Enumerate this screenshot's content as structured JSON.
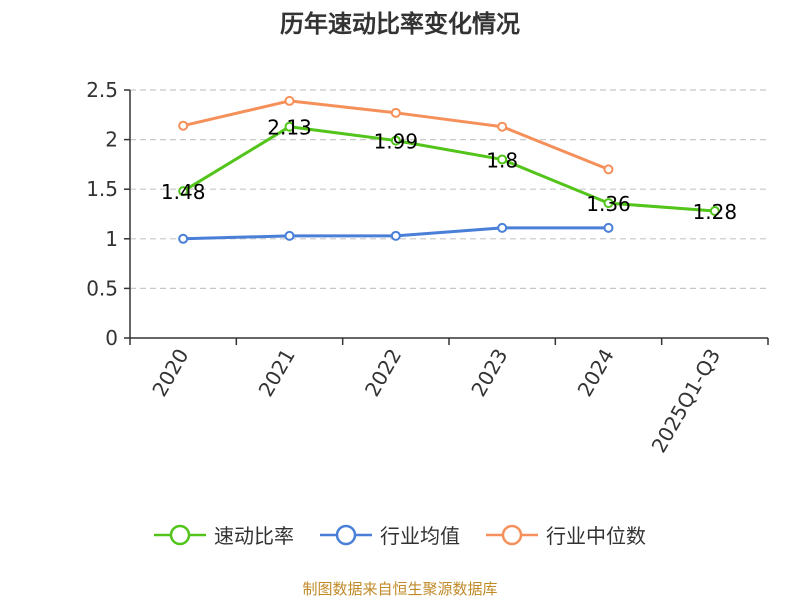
{
  "title": "历年速动比率变化情况",
  "source": "制图数据来自恒生聚源数据库",
  "chart_data": {
    "type": "line",
    "title": "历年速动比率变化情况",
    "categories": [
      "2020",
      "2021",
      "2022",
      "2023",
      "2024",
      "2025Q1-Q3"
    ],
    "ylim": [
      0,
      2.5
    ],
    "yticks": [
      0,
      0.5,
      1,
      1.5,
      2,
      2.5
    ],
    "ytick_labels": [
      "0",
      "0.5",
      "1",
      "1.5",
      "2",
      "2.5"
    ],
    "grid": true,
    "legend_position": "bottom",
    "series": [
      {
        "name": "速动比率",
        "color": "#52c41a",
        "values": [
          1.48,
          2.13,
          1.99,
          1.8,
          1.36,
          1.28
        ],
        "labels": [
          "1.48",
          "2.13",
          "1.99",
          "1.8",
          "1.36",
          "1.28"
        ]
      },
      {
        "name": "行业均值",
        "color": "#4a7fd8",
        "values": [
          1.0,
          1.03,
          1.03,
          1.11,
          1.11,
          null
        ]
      },
      {
        "name": "行业中位数",
        "color": "#f5905a",
        "values": [
          2.14,
          2.39,
          2.27,
          2.13,
          1.7,
          null
        ]
      }
    ]
  }
}
